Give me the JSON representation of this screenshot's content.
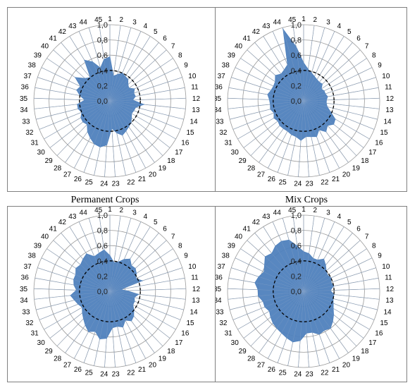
{
  "captions": [
    "Permanent Crops",
    "Mix Crops"
  ],
  "chart_data": [
    {
      "type": "radar",
      "title": "",
      "categories": [
        "1",
        "2",
        "3",
        "4",
        "5",
        "6",
        "7",
        "8",
        "9",
        "10",
        "11",
        "12",
        "13",
        "14",
        "15",
        "16",
        "17",
        "18",
        "19",
        "20",
        "21",
        "22",
        "23",
        "24",
        "25",
        "26",
        "27",
        "28",
        "29",
        "30",
        "31",
        "32",
        "33",
        "34",
        "35",
        "36",
        "37",
        "38",
        "39",
        "40",
        "41",
        "42",
        "43",
        "44",
        "45"
      ],
      "rlim": [
        0,
        1
      ],
      "r_ticks": [
        "0,0",
        "0,2",
        "0,4",
        "0,6",
        "0,8",
        "1,0"
      ],
      "reference_circle": 0.4,
      "series": [
        {
          "values": [
            0.58,
            0.33,
            0.36,
            0.4,
            0.38,
            0.37,
            0.32,
            0.3,
            0.36,
            0.33,
            0.34,
            0.3,
            0.45,
            0.35,
            0.34,
            0.33,
            0.36,
            0.4,
            0.42,
            0.45,
            0.48,
            0.43,
            0.36,
            0.58,
            0.62,
            0.6,
            0.55,
            0.5,
            0.43,
            0.45,
            0.44,
            0.4,
            0.43,
            0.43,
            0.33,
            0.4,
            0.46,
            0.43,
            0.55,
            0.44,
            0.4,
            0.63,
            0.56,
            0.45,
            0.55
          ]
        }
      ]
    },
    {
      "type": "radar",
      "title": "",
      "categories": [
        "1",
        "2",
        "3",
        "4",
        "5",
        "6",
        "7",
        "8",
        "9",
        "10",
        "11",
        "12",
        "13",
        "14",
        "15",
        "16",
        "17",
        "18",
        "19",
        "20",
        "21",
        "22",
        "23",
        "24",
        "25",
        "26",
        "27",
        "28",
        "29",
        "30",
        "31",
        "32",
        "33",
        "34",
        "35",
        "36",
        "37",
        "38",
        "39",
        "40",
        "41",
        "42",
        "43",
        "44",
        "45"
      ],
      "rlim": [
        0,
        1
      ],
      "r_ticks": [
        "0,0",
        "0,2",
        "0,4",
        "0,6",
        "0,8",
        "1,0"
      ],
      "reference_circle": 0.4,
      "series": [
        {
          "values": [
            0.5,
            0.42,
            0.38,
            0.35,
            0.33,
            0.32,
            0.33,
            0.28,
            0.3,
            0.3,
            0.32,
            0.3,
            0.3,
            0.32,
            0.38,
            0.48,
            0.5,
            0.45,
            0.5,
            0.43,
            0.5,
            0.48,
            0.47,
            0.52,
            0.48,
            0.47,
            0.45,
            0.45,
            0.45,
            0.43,
            0.45,
            0.42,
            0.45,
            0.44,
            0.45,
            0.48,
            0.45,
            0.44,
            0.45,
            0.5,
            0.46,
            0.48,
            0.52,
            0.98,
            0.72
          ]
        }
      ]
    },
    {
      "type": "radar",
      "title": "",
      "categories": [
        "1",
        "2",
        "3",
        "4",
        "5",
        "6",
        "7",
        "8",
        "9",
        "10",
        "11",
        "12",
        "13",
        "14",
        "15",
        "16",
        "17",
        "18",
        "19",
        "20",
        "21",
        "22",
        "23",
        "24",
        "25",
        "26",
        "27",
        "28",
        "29",
        "30",
        "31",
        "32",
        "33",
        "34",
        "35",
        "36",
        "37",
        "38",
        "39",
        "40",
        "41",
        "42",
        "43",
        "44",
        "45"
      ],
      "rlim": [
        0,
        1
      ],
      "r_ticks": [
        "0,0",
        "0,2",
        "0,4",
        "0,6",
        "0,8",
        "1,0"
      ],
      "reference_circle": 0.4,
      "series": [
        {
          "values": [
            0.47,
            0.38,
            0.4,
            0.46,
            0.5,
            0.44,
            0.45,
            0.42,
            0.38,
            0.45,
            0.14,
            0.22,
            0.38,
            0.33,
            0.35,
            0.35,
            0.4,
            0.45,
            0.48,
            0.43,
            0.5,
            0.47,
            0.48,
            0.62,
            0.64,
            0.56,
            0.6,
            0.55,
            0.5,
            0.46,
            0.42,
            0.45,
            0.48,
            0.52,
            0.44,
            0.48,
            0.5,
            0.5,
            0.54,
            0.52,
            0.55,
            0.58,
            0.5,
            0.52,
            0.55
          ]
        }
      ]
    },
    {
      "type": "radar",
      "title": "",
      "categories": [
        "1",
        "2",
        "3",
        "4",
        "5",
        "6",
        "7",
        "8",
        "9",
        "10",
        "11",
        "12",
        "13",
        "14",
        "15",
        "16",
        "17",
        "18",
        "19",
        "20",
        "21",
        "22",
        "23",
        "24",
        "25",
        "26",
        "27",
        "28",
        "29",
        "30",
        "31",
        "32",
        "33",
        "34",
        "35",
        "36",
        "37",
        "38",
        "39",
        "40",
        "41",
        "42",
        "43",
        "44",
        "45"
      ],
      "rlim": [
        0,
        1
      ],
      "r_ticks": [
        "0,0",
        "0,2",
        "0,4",
        "0,6",
        "0,8",
        "1,0"
      ],
      "reference_circle": 0.4,
      "series": [
        {
          "values": [
            0.52,
            0.5,
            0.45,
            0.45,
            0.5,
            0.45,
            0.4,
            0.38,
            0.4,
            0.38,
            0.4,
            0.35,
            0.4,
            0.4,
            0.42,
            0.45,
            0.5,
            0.55,
            0.6,
            0.58,
            0.6,
            0.55,
            0.55,
            0.65,
            0.68,
            0.65,
            0.62,
            0.6,
            0.58,
            0.55,
            0.52,
            0.55,
            0.55,
            0.6,
            0.6,
            0.65,
            0.62,
            0.58,
            0.62,
            0.68,
            0.65,
            0.7,
            0.72,
            0.7,
            0.6
          ]
        }
      ]
    }
  ],
  "colors": {
    "fill": "#4f81bd",
    "grid": "#9a9a9a",
    "text": "#000000"
  }
}
